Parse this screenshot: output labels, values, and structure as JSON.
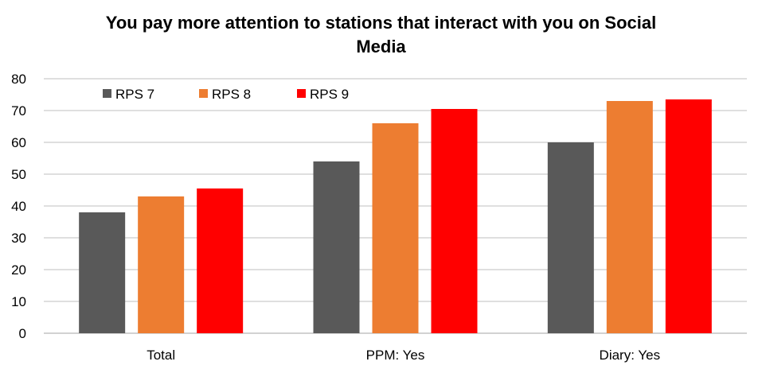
{
  "chart_data": {
    "type": "bar",
    "title_lines": [
      "You pay more attention to stations that interact with you on Social",
      "Media"
    ],
    "categories": [
      "Total",
      "PPM: Yes",
      "Diary: Yes"
    ],
    "series": [
      {
        "name": "RPS 7",
        "color": "#595959",
        "values": [
          38,
          54,
          60
        ]
      },
      {
        "name": "RPS 8",
        "color": "#ED7D31",
        "values": [
          43,
          66,
          73
        ]
      },
      {
        "name": "RPS 9",
        "color": "#FF0000",
        "values": [
          45.5,
          70.5,
          73.5
        ]
      }
    ],
    "ylim": [
      0,
      80
    ],
    "yticks": [
      "0",
      "10",
      "20",
      "30",
      "40",
      "50",
      "60",
      "70",
      "80"
    ],
    "grid": true,
    "legend_position": "top-left"
  }
}
